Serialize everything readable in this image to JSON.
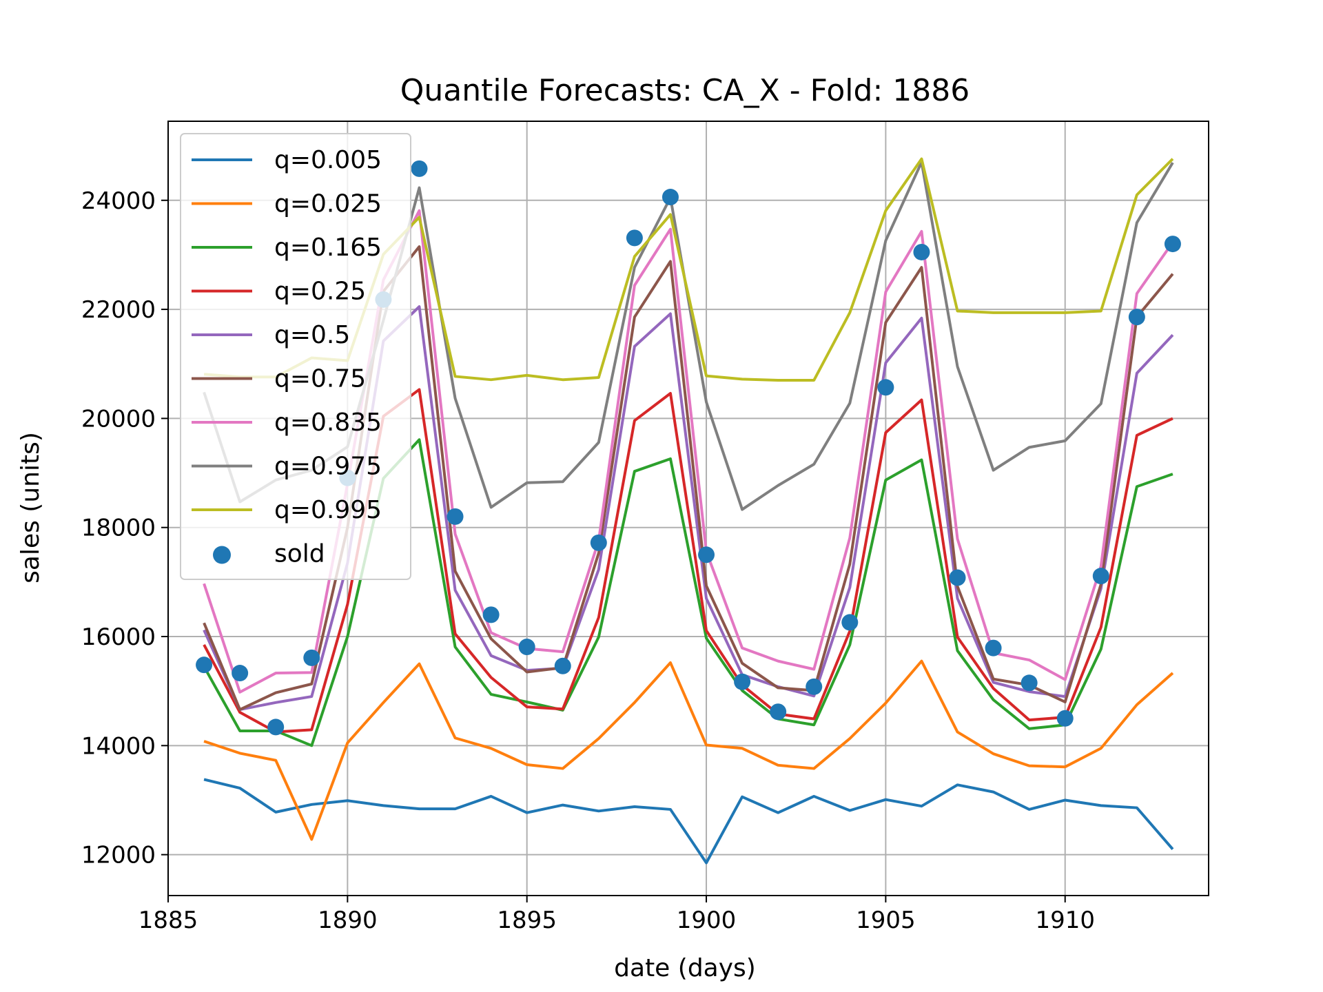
{
  "chart_data": {
    "type": "line",
    "title": "Quantile Forecasts: CA_X - Fold: 1886",
    "xlabel": "date (days)",
    "ylabel": "sales (units)",
    "xlim": [
      1885,
      1914
    ],
    "ylim": [
      11250,
      25450
    ],
    "xticks": [
      1885,
      1890,
      1895,
      1900,
      1905,
      1910
    ],
    "yticks": [
      12000,
      14000,
      16000,
      18000,
      20000,
      22000,
      24000
    ],
    "grid": true,
    "legend_position": "upper-left",
    "x": [
      1886,
      1887,
      1888,
      1889,
      1890,
      1891,
      1892,
      1893,
      1894,
      1895,
      1896,
      1897,
      1898,
      1899,
      1900,
      1901,
      1902,
      1903,
      1904,
      1905,
      1906,
      1907,
      1908,
      1909,
      1910,
      1911,
      1912,
      1913
    ],
    "series": [
      {
        "name": "q=0.005",
        "color": "#1f77b4",
        "values": [
          13380,
          13220,
          12780,
          12920,
          12990,
          12900,
          12840,
          12840,
          13070,
          12770,
          12910,
          12800,
          12880,
          12830,
          11850,
          13060,
          12770,
          13070,
          12810,
          13010,
          12890,
          13280,
          13150,
          12830,
          13000,
          12900,
          12860,
          12100
        ]
      },
      {
        "name": "q=0.025",
        "color": "#ff7f0e",
        "values": [
          14080,
          13860,
          13730,
          12280,
          14050,
          14790,
          15500,
          14140,
          13950,
          13650,
          13580,
          14130,
          14790,
          15520,
          14010,
          13950,
          13640,
          13580,
          14130,
          14780,
          15550,
          14250,
          13850,
          13630,
          13610,
          13950,
          14750,
          15330
        ]
      },
      {
        "name": "q=0.165",
        "color": "#2ca02c",
        "values": [
          15450,
          14270,
          14270,
          14000,
          16000,
          18900,
          19610,
          15810,
          14940,
          14800,
          14650,
          15990,
          19030,
          19260,
          15970,
          15010,
          14490,
          14380,
          15850,
          18870,
          19240,
          15740,
          14840,
          14310,
          14380,
          15770,
          18750,
          18980
        ]
      },
      {
        "name": "q=0.25",
        "color": "#d62728",
        "values": [
          15850,
          14610,
          14250,
          14290,
          16590,
          20040,
          20530,
          16050,
          15250,
          14710,
          14670,
          16350,
          19960,
          20460,
          16110,
          15110,
          14580,
          14490,
          16100,
          19740,
          20340,
          15990,
          15050,
          14470,
          14520,
          16170,
          19690,
          20000
        ]
      },
      {
        "name": "q=0.5",
        "color": "#9467bd",
        "values": [
          16120,
          14660,
          14790,
          14900,
          17350,
          21420,
          22050,
          16850,
          15650,
          15380,
          15420,
          17230,
          21320,
          21920,
          16700,
          15300,
          15080,
          14910,
          16900,
          21020,
          21840,
          16700,
          15160,
          14990,
          14900,
          16880,
          20830,
          21530
        ]
      },
      {
        "name": "q=0.75",
        "color": "#8c564b",
        "values": [
          16250,
          14660,
          14970,
          15130,
          18000,
          22330,
          23150,
          17200,
          15960,
          15350,
          15430,
          17530,
          21860,
          22880,
          16930,
          15510,
          15060,
          15010,
          17330,
          21760,
          22770,
          16920,
          15220,
          15110,
          14800,
          16960,
          21860,
          22650
        ]
      },
      {
        "name": "q=0.835",
        "color": "#e377c2",
        "values": [
          16970,
          14980,
          15330,
          15340,
          18800,
          22540,
          23810,
          17880,
          16070,
          15780,
          15720,
          17760,
          22440,
          23470,
          17560,
          15790,
          15550,
          15400,
          17810,
          22320,
          23430,
          17790,
          15700,
          15570,
          15210,
          17290,
          22290,
          23230
        ]
      },
      {
        "name": "q=0.975",
        "color": "#7f7f7f",
        "values": [
          20480,
          18470,
          18870,
          19050,
          19480,
          21800,
          24230,
          20370,
          18370,
          18820,
          18840,
          19560,
          22770,
          24050,
          20300,
          18330,
          18770,
          19160,
          20280,
          23260,
          24700,
          20950,
          19050,
          19470,
          19590,
          20270,
          23590,
          24690
        ]
      },
      {
        "name": "q=0.995",
        "color": "#bcbd22",
        "values": [
          20810,
          20760,
          20760,
          21110,
          21060,
          23010,
          23690,
          20770,
          20710,
          20790,
          20710,
          20750,
          22970,
          23740,
          20780,
          20720,
          20700,
          20700,
          21940,
          23810,
          24760,
          21970,
          21940,
          21940,
          21940,
          21970,
          24100,
          24760
        ]
      }
    ],
    "scatter": {
      "name": "sold",
      "color": "#1f77b4",
      "values": [
        15480,
        15330,
        14340,
        15610,
        18910,
        22180,
        24580,
        18200,
        16400,
        15810,
        15460,
        17720,
        23310,
        24060,
        17500,
        15170,
        14620,
        15080,
        16260,
        20570,
        23050,
        17080,
        15790,
        15150,
        14500,
        17110,
        21860,
        23200
      ]
    }
  }
}
